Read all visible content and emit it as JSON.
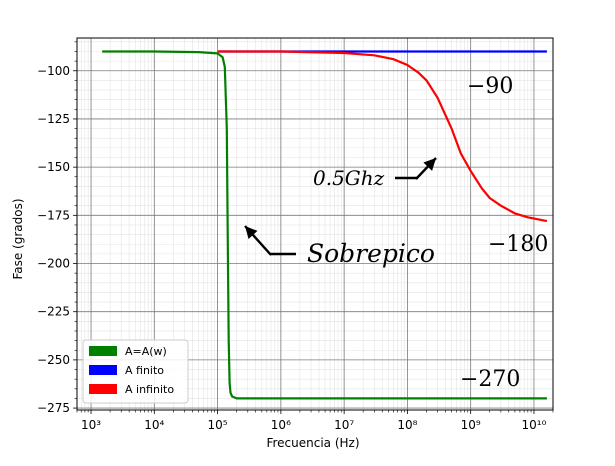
{
  "chart_data": {
    "type": "line",
    "xscale": "log",
    "xlabel": "Frecuencia (Hz)",
    "ylabel": "Fase (grados)",
    "xlim": [
      600,
      20000000000
    ],
    "ylim": [
      -276,
      -83
    ],
    "x_ticks": [
      {
        "value": 1000,
        "label": "10³"
      },
      {
        "value": 10000,
        "label": "10⁴"
      },
      {
        "value": 100000,
        "label": "10⁵"
      },
      {
        "value": 1000000,
        "label": "10⁶"
      },
      {
        "value": 10000000,
        "label": "10⁷"
      },
      {
        "value": 100000000,
        "label": "10⁸"
      },
      {
        "value": 1000000000,
        "label": "10⁹"
      },
      {
        "value": 10000000000,
        "label": "10¹⁰"
      }
    ],
    "y_ticks": [
      {
        "value": -100,
        "label": "−100"
      },
      {
        "value": -125,
        "label": "−125"
      },
      {
        "value": -150,
        "label": "−150"
      },
      {
        "value": -175,
        "label": "−175"
      },
      {
        "value": -200,
        "label": "−200"
      },
      {
        "value": -225,
        "label": "−225"
      },
      {
        "value": -250,
        "label": "−250"
      },
      {
        "value": -275,
        "label": "−275"
      }
    ],
    "grid": {
      "major": true,
      "minor": true
    },
    "legend_position": "lower-left",
    "series": [
      {
        "name": "A=A(w)",
        "color": "#008000",
        "x": [
          1500,
          10000,
          50000,
          100000,
          120000,
          130000,
          140000,
          145000,
          150000,
          155000,
          160000,
          170000,
          200000,
          1000000,
          10000000,
          100000000,
          1000000000,
          16000000000
        ],
        "y": [
          -90,
          -90,
          -90.3,
          -91,
          -93,
          -98,
          -130,
          -190,
          -240,
          -262,
          -267,
          -269,
          -270,
          -270,
          -270,
          -270,
          -270,
          -270
        ]
      },
      {
        "name": "A finito",
        "color": "#0000ff",
        "x": [
          100000,
          1000000,
          10000000,
          100000000,
          1000000000,
          16000000000
        ],
        "y": [
          -90,
          -90,
          -90,
          -90,
          -90,
          -90
        ]
      },
      {
        "name": "A infinito",
        "color": "#ff0000",
        "x": [
          100000,
          1000000,
          10000000,
          30000000,
          60000000,
          100000000,
          150000000,
          200000000,
          300000000,
          500000000,
          700000000,
          1000000000,
          1500000000,
          2000000000,
          3000000000,
          5000000000,
          8000000000,
          16000000000
        ],
        "y": [
          -90,
          -90,
          -90.8,
          -92,
          -94,
          -97,
          -101,
          -105,
          -114,
          -130,
          -143,
          -152,
          -161,
          -166,
          -170,
          -174,
          -176,
          -178
        ]
      }
    ],
    "annotations": [
      {
        "text": "−90",
        "x": 500000000,
        "y": -90,
        "style": "math"
      },
      {
        "text": "−180",
        "x": 1000000000,
        "y": -180,
        "style": "math"
      },
      {
        "text": "−270",
        "x": 200000000,
        "y": -270,
        "style": "math"
      },
      {
        "text": "0.5Ghz",
        "x": 500000000,
        "y": -150,
        "style": "math-italic"
      },
      {
        "text": "Sobrepico",
        "x": 150000,
        "y": -200,
        "style": "math-italic"
      }
    ]
  }
}
